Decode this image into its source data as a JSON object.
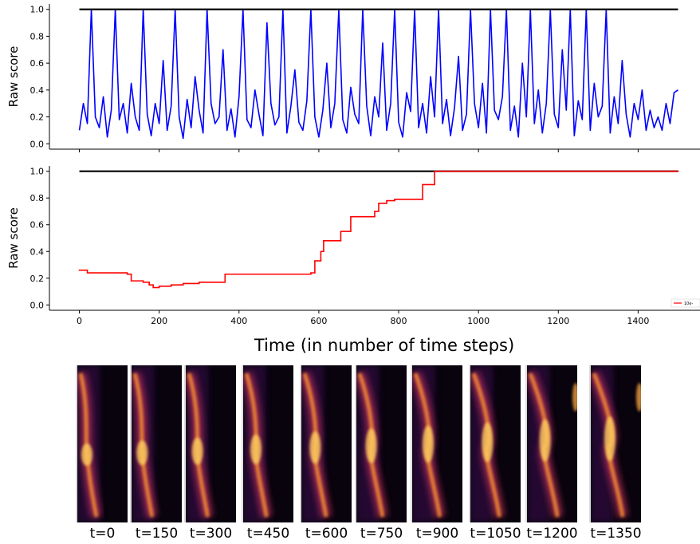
{
  "chart_data": [
    {
      "type": "line",
      "ylabel": "Raw score",
      "xlim": [
        -75,
        1575
      ],
      "ylim": [
        -0.04,
        1.04
      ],
      "xticks": [
        0,
        200,
        400,
        600,
        800,
        1000,
        1200,
        1400
      ],
      "xticklabels": false,
      "yticks": [
        {
          "value": 0,
          "label": "0.0"
        },
        0.2,
        0.4,
        0.6,
        0.8,
        {
          "value": 1,
          "label": "1.0"
        }
      ],
      "series": [
        {
          "color": "#0000ff",
          "x": [
            0,
            10,
            20,
            30,
            40,
            50,
            60,
            70,
            80,
            90,
            100,
            110,
            120,
            130,
            140,
            150,
            160,
            170,
            180,
            190,
            200,
            210,
            220,
            230,
            240,
            250,
            260,
            270,
            280,
            290,
            300,
            310,
            320,
            330,
            340,
            350,
            360,
            370,
            380,
            390,
            400,
            410,
            420,
            430,
            440,
            450,
            460,
            470,
            480,
            490,
            500,
            510,
            520,
            530,
            540,
            550,
            560,
            570,
            580,
            590,
            600,
            610,
            620,
            630,
            640,
            650,
            660,
            670,
            680,
            690,
            700,
            710,
            720,
            730,
            740,
            750,
            760,
            770,
            780,
            790,
            800,
            810,
            820,
            830,
            840,
            850,
            860,
            870,
            880,
            890,
            900,
            910,
            920,
            930,
            940,
            950,
            960,
            970,
            980,
            990,
            1000,
            1010,
            1020,
            1030,
            1040,
            1050,
            1060,
            1070,
            1080,
            1090,
            1100,
            1110,
            1120,
            1130,
            1140,
            1150,
            1160,
            1170,
            1180,
            1190,
            1200,
            1210,
            1220,
            1230,
            1240,
            1250,
            1260,
            1270,
            1280,
            1290,
            1300,
            1310,
            1320,
            1330,
            1340,
            1350,
            1360,
            1370,
            1380,
            1390,
            1400,
            1410,
            1420,
            1430,
            1440,
            1450,
            1460,
            1470,
            1480,
            1490,
            1500
          ],
          "values": [
            0.1,
            0.3,
            0.15,
            1,
            0.2,
            0.12,
            0.35,
            0.05,
            0.25,
            1,
            0.18,
            0.3,
            0.08,
            0.45,
            0.2,
            0.1,
            1,
            0.22,
            0.06,
            0.3,
            0.15,
            0.62,
            0.1,
            0.28,
            1,
            0.2,
            0.04,
            0.33,
            0.12,
            0.5,
            0.25,
            0.08,
            1,
            0.3,
            0.15,
            0.2,
            0.7,
            0.1,
            0.26,
            0.05,
            0.35,
            1,
            0.18,
            0.12,
            0.4,
            0.22,
            0.06,
            0.9,
            0.3,
            0.14,
            0.2,
            1,
            0.08,
            0.28,
            0.55,
            0.16,
            0.1,
            0.32,
            1,
            0.2,
            0.05,
            0.25,
            0.6,
            0.12,
            0.3,
            1,
            0.18,
            0.08,
            0.42,
            0.22,
            0.15,
            1,
            0.28,
            0.06,
            0.35,
            0.2,
            0.75,
            0.1,
            0.3,
            1,
            0.16,
            0.05,
            0.38,
            0.24,
            1,
            0.12,
            0.3,
            0.08,
            0.5,
            0.2,
            1,
            0.15,
            0.33,
            0.06,
            0.27,
            0.65,
            0.1,
            0.22,
            1,
            0.3,
            0.12,
            0.45,
            0.08,
            1,
            0.25,
            0.18,
            0.35,
            1,
            0.1,
            0.28,
            0.05,
            0.6,
            0.2,
            1,
            0.15,
            0.4,
            0.08,
            0.3,
            1,
            0.22,
            0.12,
            0.7,
            0.25,
            1,
            0.06,
            0.32,
            0.18,
            1,
            0.1,
            0.45,
            0.2,
            0.28,
            1,
            0.08,
            0.35,
            0.15,
            0.62,
            0.22,
            0.05,
            0.3,
            0.18,
            0.4,
            0.1,
            0.25,
            0.12,
            0.2,
            0.1,
            0.3,
            0.15,
            0.38,
            0.4
          ]
        },
        {
          "color": "#000000",
          "x": [
            0,
            1500
          ],
          "values": [
            1,
            1
          ]
        }
      ]
    },
    {
      "type": "line",
      "ylabel": "Raw score",
      "xlabel": "Time (in number of time steps)",
      "xlim": [
        -75,
        1575
      ],
      "ylim": [
        -0.04,
        1.04
      ],
      "xticks": [
        0,
        200,
        400,
        600,
        800,
        1000,
        1200,
        1400
      ],
      "yticks": [
        {
          "value": 0,
          "label": "0.0"
        },
        0.2,
        0.4,
        0.6,
        0.8,
        {
          "value": 1,
          "label": "1.0"
        }
      ],
      "legend": "lower right",
      "series": [
        {
          "color": "#000000",
          "x": [
            0,
            1500
          ],
          "values": [
            1,
            1
          ]
        },
        {
          "name": "10e-",
          "color": "#ff0000",
          "drawstyle": "steps-post",
          "x": [
            0,
            20,
            120,
            130,
            160,
            175,
            185,
            200,
            230,
            260,
            300,
            365,
            580,
            590,
            605,
            612,
            655,
            680,
            740,
            750,
            770,
            790,
            860,
            890,
            1500
          ],
          "values": [
            0.26,
            0.24,
            0.23,
            0.18,
            0.17,
            0.15,
            0.13,
            0.14,
            0.15,
            0.16,
            0.17,
            0.23,
            0.24,
            0.33,
            0.4,
            0.48,
            0.55,
            0.66,
            0.7,
            0.76,
            0.78,
            0.79,
            0.9,
            1,
            1
          ]
        }
      ]
    }
  ],
  "image_strip": {
    "labels": [
      "t=0",
      "t=150",
      "t=300",
      "t=450",
      "t=600",
      "t=750",
      "t=900",
      "t=1050",
      "t=1200",
      "t=1350"
    ]
  }
}
